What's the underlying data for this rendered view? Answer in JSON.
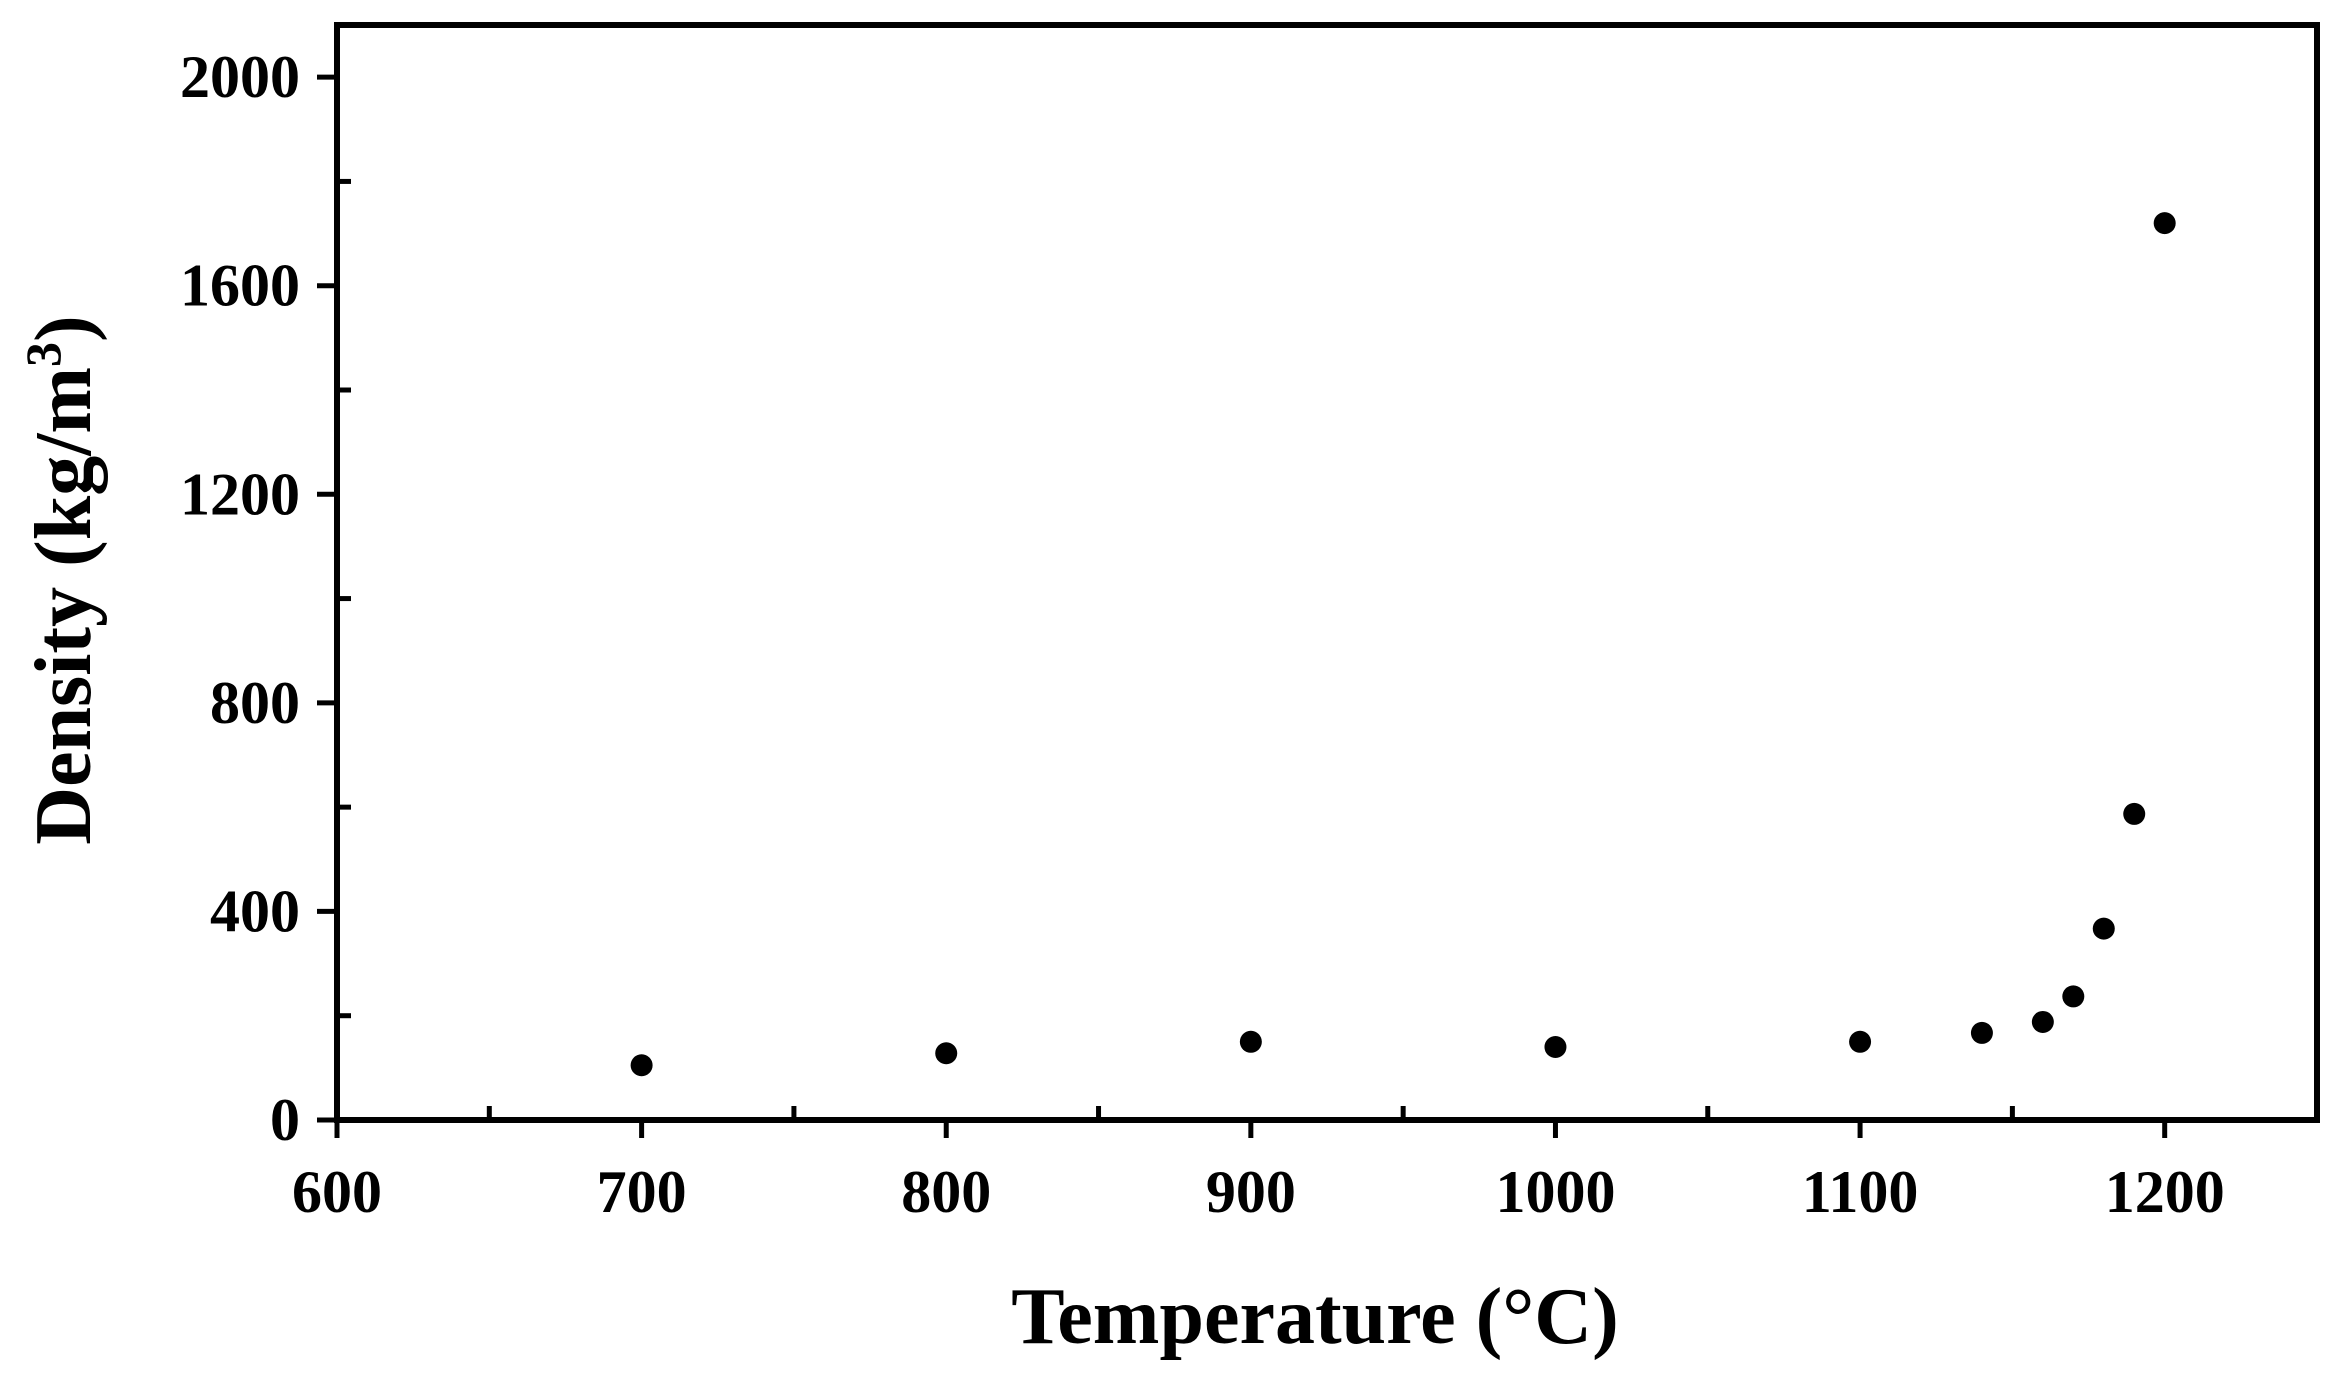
{
  "chart_data": {
    "type": "scatter",
    "title": "",
    "xlabel": "Temperature (°C)",
    "ylabel_main": "Density (kg/m",
    "ylabel_sup": "3",
    "ylabel_close": ")",
    "xlim": [
      600,
      1250
    ],
    "ylim": [
      0,
      2100
    ],
    "x_ticks": [
      600,
      700,
      800,
      900,
      1000,
      1100,
      1200
    ],
    "x_minor_ticks": [
      650,
      750,
      850,
      950,
      1050,
      1150
    ],
    "y_ticks": [
      0,
      400,
      800,
      1200,
      1600,
      2000
    ],
    "y_minor_ticks": [
      200,
      600,
      1000,
      1400,
      1800
    ],
    "grid": false,
    "marker_color": "#000000",
    "points": [
      {
        "x": 700,
        "y": 105
      },
      {
        "x": 800,
        "y": 128
      },
      {
        "x": 900,
        "y": 150
      },
      {
        "x": 1000,
        "y": 140
      },
      {
        "x": 1100,
        "y": 150
      },
      {
        "x": 1140,
        "y": 167
      },
      {
        "x": 1160,
        "y": 188
      },
      {
        "x": 1170,
        "y": 237
      },
      {
        "x": 1180,
        "y": 367
      },
      {
        "x": 1190,
        "y": 587
      },
      {
        "x": 1200,
        "y": 1720
      }
    ]
  }
}
